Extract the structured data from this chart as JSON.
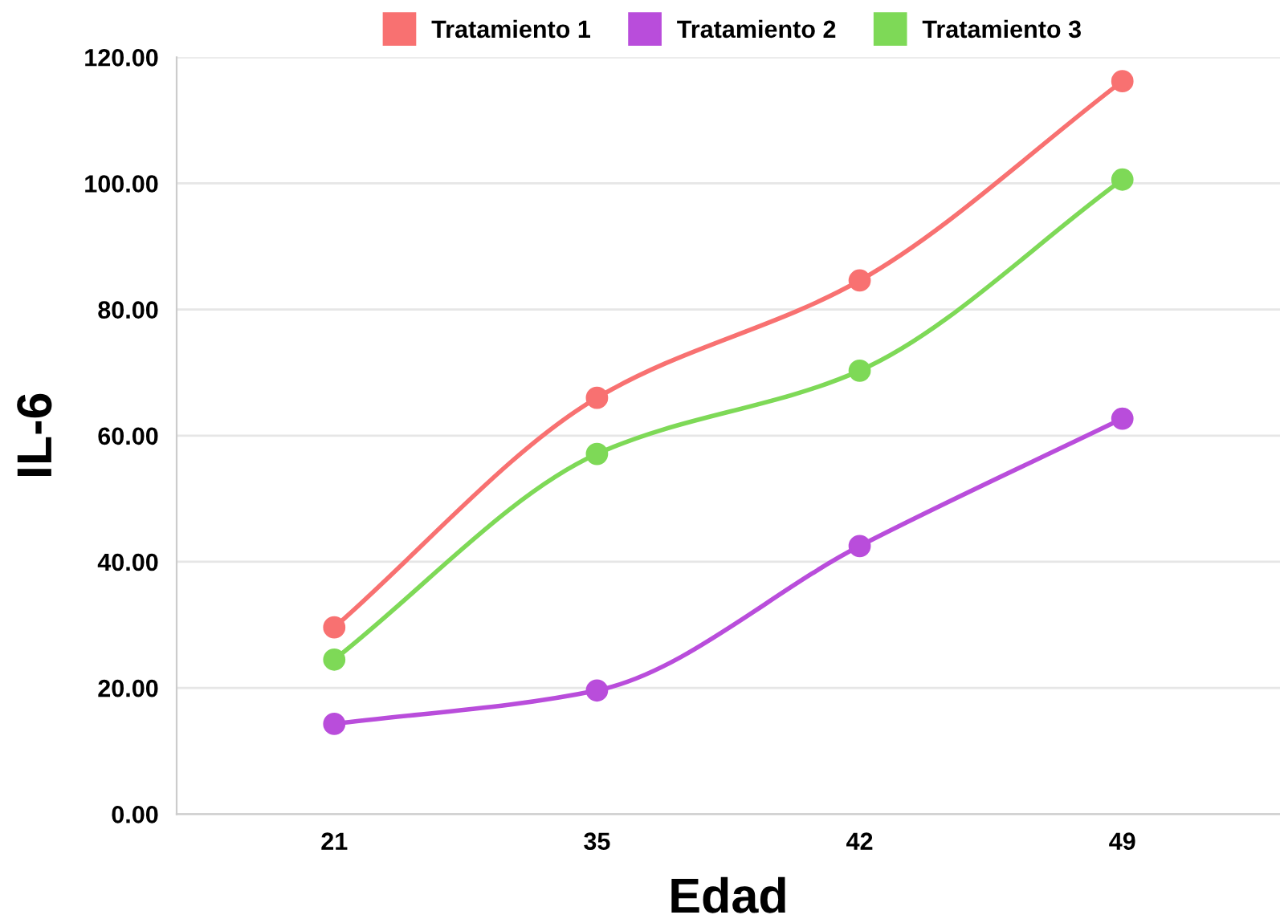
{
  "chart_data": {
    "type": "line",
    "xlabel": "Edad",
    "ylabel": "IL-6",
    "categories": [
      "21",
      "35",
      "42",
      "49"
    ],
    "series": [
      {
        "name": "Tratamiento 1",
        "color": "#f87171",
        "values": [
          29.6,
          66.0,
          84.6,
          116.2
        ]
      },
      {
        "name": "Tratamiento 2",
        "color": "#b94ddb",
        "values": [
          14.3,
          19.6,
          42.5,
          62.7
        ]
      },
      {
        "name": "Tratamiento 3",
        "color": "#7ed957",
        "values": [
          24.5,
          57.1,
          70.3,
          100.6
        ]
      }
    ],
    "ylim": [
      0,
      120
    ],
    "yticks": [
      {
        "value": 0,
        "label": "0.00"
      },
      {
        "value": 20,
        "label": "20.00"
      },
      {
        "value": 40,
        "label": "40.00"
      },
      {
        "value": 60,
        "label": "60.00"
      },
      {
        "value": 80,
        "label": "80.00"
      },
      {
        "value": 100,
        "label": "100.00"
      },
      {
        "value": 120,
        "label": "120.00"
      }
    ],
    "grid": "y",
    "legend": "top",
    "marker": "circle",
    "line_style": "solid"
  }
}
